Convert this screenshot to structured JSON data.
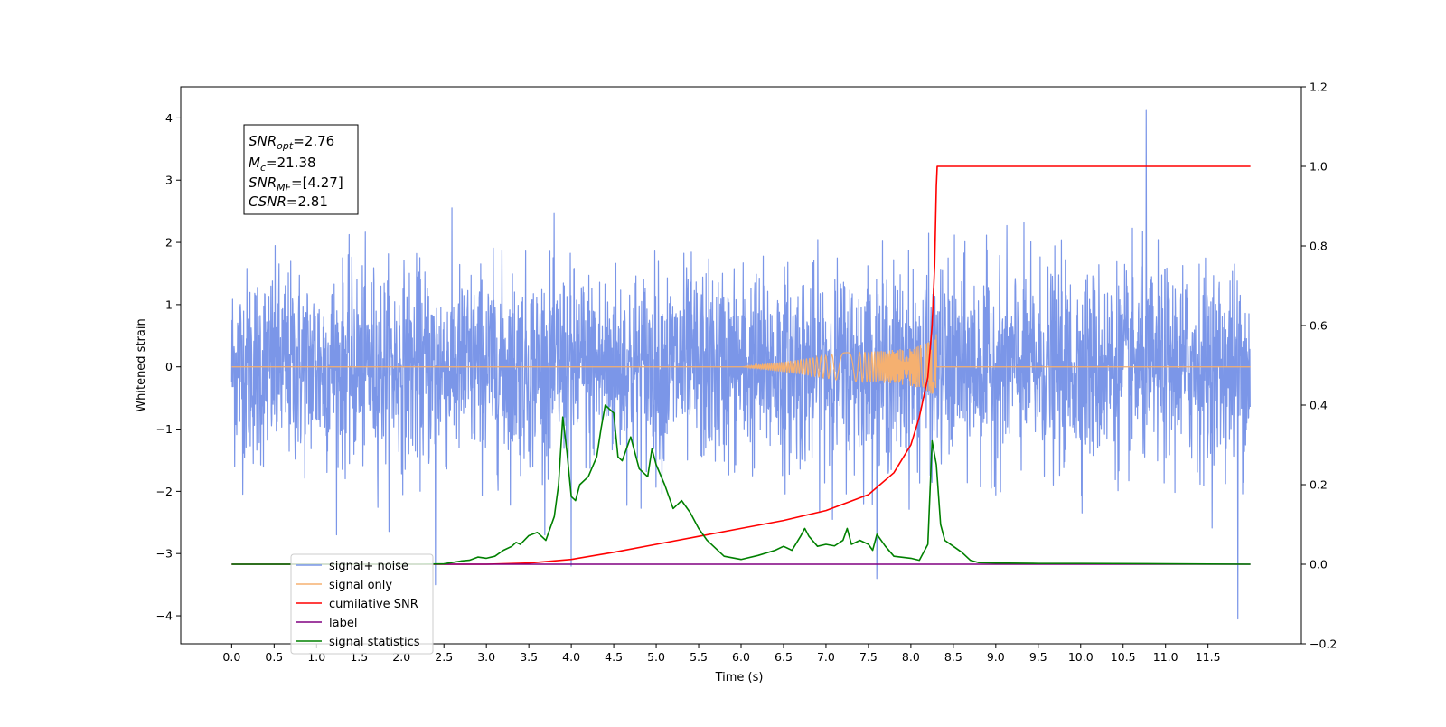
{
  "chart_data": {
    "type": "line",
    "xlabel": "Time (s)",
    "ylabel": "Whitened strain",
    "xlim": [
      -0.6,
      12.6
    ],
    "ylim": [
      -4.45,
      4.5
    ],
    "xticks": [
      "0.0",
      "0.5",
      "1.0",
      "1.5",
      "2.0",
      "2.5",
      "3.0",
      "3.5",
      "4.0",
      "4.5",
      "5.0",
      "5.5",
      "6.0",
      "6.5",
      "7.0",
      "7.5",
      "8.0",
      "8.5",
      "9.0",
      "9.5",
      "10.0",
      "10.5",
      "11.0",
      "11.5"
    ],
    "yticks": [
      "4",
      "3",
      "2",
      "1",
      "0",
      "−1",
      "−2",
      "−3",
      "−4"
    ],
    "y2lim": [
      -0.2,
      1.2
    ],
    "y2ticks": [
      "1.2",
      "1.0",
      "0.8",
      "0.6",
      "0.4",
      "0.2",
      "0.0",
      "−0.2"
    ],
    "grid": false,
    "legend_position": "lower-left",
    "annotation": {
      "snr_opt": {
        "sym": "SNR",
        "sub": "opt",
        "value": "=2.76"
      },
      "mc": {
        "sym": "M",
        "sub": "c",
        "value": "=21.38"
      },
      "snr_mf": {
        "sym": "SNR",
        "sub": "MF",
        "value": "=[4.27]"
      },
      "csnr": {
        "sym": "CSNR",
        "value": "=2.81"
      }
    },
    "series": [
      {
        "name": "signal+ noise",
        "color": "#7b96e8",
        "axis": "left",
        "description_range": [
          -2.4,
          2.4
        ],
        "peaks": [
          [
            10.77,
            4.12
          ],
          [
            11.85,
            -4.05
          ],
          [
            7.6,
            -3.4
          ],
          [
            2.4,
            -3.5
          ],
          [
            4.0,
            -3.2
          ]
        ]
      },
      {
        "name": "signal only",
        "color": "#f5b070",
        "axis": "left",
        "chirp_start": 6.0,
        "merger_time": 8.3,
        "peak_amplitude": 0.62
      },
      {
        "name": "cumilative SNR",
        "color": "#ff0000",
        "axis": "right",
        "x": [
          0.0,
          3.0,
          3.5,
          4.0,
          4.5,
          5.0,
          5.5,
          6.0,
          6.5,
          7.0,
          7.5,
          7.8,
          8.0,
          8.1,
          8.2,
          8.25,
          8.28,
          8.3,
          8.31,
          12.0
        ],
        "y": [
          0.0,
          0.0,
          0.003,
          0.012,
          0.03,
          0.05,
          0.07,
          0.09,
          0.11,
          0.135,
          0.175,
          0.23,
          0.3,
          0.37,
          0.47,
          0.6,
          0.75,
          0.95,
          1.0,
          1.0
        ]
      },
      {
        "name": "label",
        "color": "#800080",
        "axis": "right",
        "x": [
          0.0,
          12.0
        ],
        "y": [
          0.0,
          0.0
        ]
      },
      {
        "name": "signal statistics",
        "color": "#008000",
        "axis": "right",
        "x": [
          0.0,
          2.2,
          2.5,
          2.7,
          2.8,
          2.9,
          3.0,
          3.1,
          3.2,
          3.3,
          3.35,
          3.4,
          3.5,
          3.6,
          3.7,
          3.8,
          3.85,
          3.9,
          3.95,
          4.0,
          4.05,
          4.1,
          4.2,
          4.3,
          4.35,
          4.4,
          4.5,
          4.55,
          4.6,
          4.7,
          4.8,
          4.9,
          4.95,
          5.0,
          5.1,
          5.2,
          5.3,
          5.4,
          5.5,
          5.6,
          5.8,
          6.0,
          6.2,
          6.4,
          6.5,
          6.6,
          6.7,
          6.75,
          6.8,
          6.9,
          7.0,
          7.1,
          7.2,
          7.25,
          7.3,
          7.4,
          7.5,
          7.55,
          7.6,
          7.7,
          7.8,
          8.0,
          8.1,
          8.2,
          8.25,
          8.3,
          8.35,
          8.4,
          8.5,
          8.6,
          8.7,
          8.8,
          9.0,
          9.5,
          10.0,
          11.0,
          12.0
        ],
        "y": [
          0.0,
          0.0,
          0.001,
          0.008,
          0.01,
          0.018,
          0.015,
          0.02,
          0.035,
          0.045,
          0.055,
          0.05,
          0.072,
          0.08,
          0.06,
          0.12,
          0.2,
          0.37,
          0.28,
          0.17,
          0.16,
          0.2,
          0.22,
          0.27,
          0.34,
          0.4,
          0.38,
          0.27,
          0.26,
          0.32,
          0.24,
          0.22,
          0.29,
          0.25,
          0.2,
          0.14,
          0.16,
          0.13,
          0.09,
          0.06,
          0.02,
          0.012,
          0.022,
          0.035,
          0.045,
          0.035,
          0.07,
          0.09,
          0.07,
          0.045,
          0.05,
          0.046,
          0.06,
          0.09,
          0.05,
          0.06,
          0.05,
          0.035,
          0.075,
          0.045,
          0.02,
          0.015,
          0.01,
          0.05,
          0.31,
          0.25,
          0.1,
          0.06,
          0.045,
          0.03,
          0.01,
          0.004,
          0.003,
          0.002,
          0.002,
          0.001,
          0.0
        ]
      }
    ]
  }
}
